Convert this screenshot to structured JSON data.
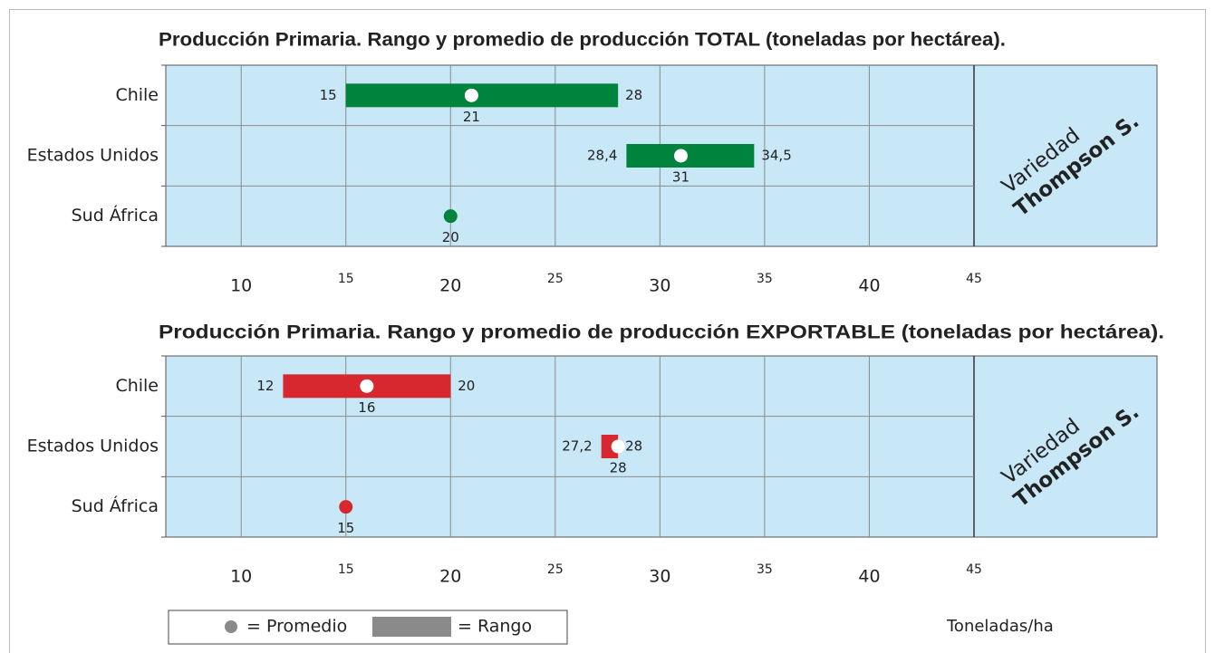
{
  "chart_data": [
    {
      "type": "range",
      "title": "Producción Primaria. Rango y promedio de producción TOTAL (toneladas por hectárea).",
      "categories": [
        "Chile",
        "Estados Unidos",
        "Sud África"
      ],
      "color": "#00843d",
      "low": {
        "values": [
          15,
          28.4,
          null
        ],
        "value_labels": [
          "15",
          "28,4",
          null
        ]
      },
      "high": {
        "values": [
          28,
          34.5,
          null
        ],
        "value_labels": [
          "28",
          "34,5",
          null
        ]
      },
      "mean": {
        "values": [
          21,
          31,
          20
        ]
      },
      "xlim": [
        6.4,
        45
      ],
      "xticks": [
        10,
        15,
        20,
        25,
        30,
        35,
        40,
        45
      ],
      "annotation": [
        "Variedad",
        "Thompson S."
      ]
    },
    {
      "type": "range",
      "title": "Producción Primaria. Rango y promedio de producción EXPORTABLE (toneladas por hectárea).",
      "categories": [
        "Chile",
        "Estados Unidos",
        "Sud África"
      ],
      "color": "#d7282f",
      "low": {
        "values": [
          12,
          27.2,
          null
        ],
        "value_labels": [
          "12",
          "27,2",
          null
        ]
      },
      "high": {
        "values": [
          20,
          28,
          null
        ],
        "value_labels": [
          "20",
          "28",
          null
        ]
      },
      "mean": {
        "values": [
          16,
          28,
          15
        ]
      },
      "xlim": [
        6.4,
        45
      ],
      "xticks": [
        10,
        15,
        20,
        25,
        30,
        35,
        40,
        45
      ],
      "annotation": [
        "Variedad",
        "Thompson S."
      ]
    }
  ],
  "legend": {
    "mean": "= Promedio",
    "range": "= Rango"
  },
  "x_label": "Toneladas/ha"
}
